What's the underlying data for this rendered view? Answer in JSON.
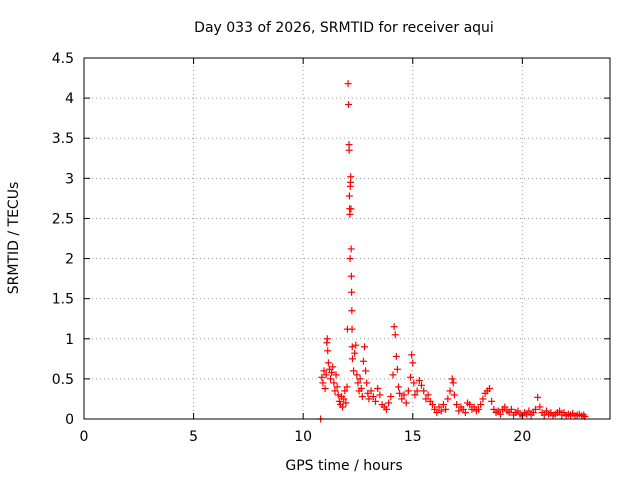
{
  "chart_data": {
    "type": "scatter",
    "title": "Day 033 of 2026, SRMTID for receiver aqui",
    "xlabel": "GPS time / hours",
    "ylabel": "SRMTID / TECUs",
    "xlim": [
      0,
      24
    ],
    "ylim": [
      0,
      4.5
    ],
    "xticks": [
      0,
      5,
      10,
      15,
      20
    ],
    "xtick_labels": [
      "0",
      "5",
      "10",
      "15",
      "20"
    ],
    "yticks": [
      0,
      0.5,
      1,
      1.5,
      2,
      2.5,
      3,
      3.5,
      4,
      4.5
    ],
    "ytick_labels": [
      "0",
      "0.5",
      "1",
      "1.5",
      "2",
      "2.5",
      "3",
      "3.5",
      "4",
      "4.5"
    ],
    "grid": true,
    "marker": "+",
    "color": "#ff0000",
    "series": [
      {
        "name": "SRMTID",
        "points": [
          [
            10.8,
            0.0
          ],
          [
            10.85,
            0.52
          ],
          [
            10.9,
            0.45
          ],
          [
            10.95,
            0.6
          ],
          [
            11.0,
            0.38
          ],
          [
            11.05,
            0.55
          ],
          [
            11.08,
            0.95
          ],
          [
            11.1,
            1.0
          ],
          [
            11.12,
            0.85
          ],
          [
            11.15,
            0.7
          ],
          [
            11.2,
            0.62
          ],
          [
            11.25,
            0.5
          ],
          [
            11.3,
            0.58
          ],
          [
            11.35,
            0.65
          ],
          [
            11.4,
            0.45
          ],
          [
            11.45,
            0.35
          ],
          [
            11.5,
            0.55
          ],
          [
            11.55,
            0.4
          ],
          [
            11.6,
            0.3
          ],
          [
            11.65,
            0.22
          ],
          [
            11.7,
            0.18
          ],
          [
            11.75,
            0.28
          ],
          [
            11.8,
            0.15
          ],
          [
            11.85,
            0.25
          ],
          [
            11.9,
            0.35
          ],
          [
            11.95,
            0.2
          ],
          [
            12.0,
            0.4
          ],
          [
            12.02,
            1.12
          ],
          [
            12.05,
            4.18
          ],
          [
            12.07,
            3.92
          ],
          [
            12.09,
            3.42
          ],
          [
            12.1,
            3.35
          ],
          [
            12.11,
            2.78
          ],
          [
            12.12,
            2.62
          ],
          [
            12.13,
            2.55
          ],
          [
            12.14,
            2.0
          ],
          [
            12.15,
            2.9
          ],
          [
            12.16,
            2.95
          ],
          [
            12.17,
            3.02
          ],
          [
            12.18,
            2.62
          ],
          [
            12.19,
            2.12
          ],
          [
            12.2,
            1.78
          ],
          [
            12.21,
            1.58
          ],
          [
            12.22,
            1.35
          ],
          [
            12.23,
            1.12
          ],
          [
            12.24,
            0.9
          ],
          [
            12.25,
            0.75
          ],
          [
            12.3,
            0.6
          ],
          [
            12.35,
            0.82
          ],
          [
            12.4,
            0.92
          ],
          [
            12.45,
            0.55
          ],
          [
            12.5,
            0.45
          ],
          [
            12.55,
            0.35
          ],
          [
            12.6,
            0.5
          ],
          [
            12.65,
            0.38
          ],
          [
            12.7,
            0.28
          ],
          [
            12.75,
            0.72
          ],
          [
            12.8,
            0.9
          ],
          [
            12.85,
            0.6
          ],
          [
            12.9,
            0.45
          ],
          [
            12.95,
            0.32
          ],
          [
            13.0,
            0.25
          ],
          [
            13.1,
            0.35
          ],
          [
            13.2,
            0.28
          ],
          [
            13.3,
            0.22
          ],
          [
            13.4,
            0.38
          ],
          [
            13.5,
            0.3
          ],
          [
            13.6,
            0.18
          ],
          [
            13.7,
            0.15
          ],
          [
            13.8,
            0.12
          ],
          [
            13.9,
            0.2
          ],
          [
            14.0,
            0.28
          ],
          [
            14.1,
            0.55
          ],
          [
            14.15,
            1.15
          ],
          [
            14.2,
            1.05
          ],
          [
            14.25,
            0.78
          ],
          [
            14.3,
            0.62
          ],
          [
            14.35,
            0.4
          ],
          [
            14.4,
            0.32
          ],
          [
            14.5,
            0.25
          ],
          [
            14.6,
            0.3
          ],
          [
            14.7,
            0.2
          ],
          [
            14.8,
            0.35
          ],
          [
            14.9,
            0.52
          ],
          [
            14.95,
            0.8
          ],
          [
            15.0,
            0.7
          ],
          [
            15.05,
            0.45
          ],
          [
            15.1,
            0.3
          ],
          [
            15.2,
            0.35
          ],
          [
            15.3,
            0.48
          ],
          [
            15.4,
            0.42
          ],
          [
            15.5,
            0.35
          ],
          [
            15.6,
            0.25
          ],
          [
            15.7,
            0.3
          ],
          [
            15.8,
            0.22
          ],
          [
            15.9,
            0.18
          ],
          [
            16.0,
            0.12
          ],
          [
            16.1,
            0.08
          ],
          [
            16.2,
            0.15
          ],
          [
            16.3,
            0.1
          ],
          [
            16.4,
            0.18
          ],
          [
            16.5,
            0.12
          ],
          [
            16.6,
            0.25
          ],
          [
            16.7,
            0.35
          ],
          [
            16.8,
            0.5
          ],
          [
            16.85,
            0.45
          ],
          [
            16.9,
            0.3
          ],
          [
            17.0,
            0.18
          ],
          [
            17.1,
            0.1
          ],
          [
            17.2,
            0.15
          ],
          [
            17.3,
            0.12
          ],
          [
            17.4,
            0.08
          ],
          [
            17.5,
            0.2
          ],
          [
            17.6,
            0.18
          ],
          [
            17.7,
            0.12
          ],
          [
            17.8,
            0.15
          ],
          [
            17.9,
            0.1
          ],
          [
            18.0,
            0.12
          ],
          [
            18.1,
            0.18
          ],
          [
            18.2,
            0.25
          ],
          [
            18.3,
            0.32
          ],
          [
            18.4,
            0.35
          ],
          [
            18.5,
            0.38
          ],
          [
            18.6,
            0.22
          ],
          [
            18.7,
            0.12
          ],
          [
            18.8,
            0.08
          ],
          [
            18.9,
            0.1
          ],
          [
            19.0,
            0.06
          ],
          [
            19.1,
            0.12
          ],
          [
            19.2,
            0.15
          ],
          [
            19.3,
            0.1
          ],
          [
            19.4,
            0.08
          ],
          [
            19.5,
            0.12
          ],
          [
            19.6,
            0.05
          ],
          [
            19.7,
            0.08
          ],
          [
            19.8,
            0.1
          ],
          [
            19.9,
            0.06
          ],
          [
            20.0,
            0.04
          ],
          [
            20.1,
            0.08
          ],
          [
            20.2,
            0.06
          ],
          [
            20.3,
            0.1
          ],
          [
            20.4,
            0.05
          ],
          [
            20.5,
            0.08
          ],
          [
            20.6,
            0.12
          ],
          [
            20.7,
            0.27
          ],
          [
            20.8,
            0.15
          ],
          [
            20.9,
            0.08
          ],
          [
            21.0,
            0.05
          ],
          [
            21.1,
            0.1
          ],
          [
            21.2,
            0.06
          ],
          [
            21.3,
            0.08
          ],
          [
            21.4,
            0.04
          ],
          [
            21.5,
            0.06
          ],
          [
            21.6,
            0.08
          ],
          [
            21.7,
            0.1
          ],
          [
            21.8,
            0.05
          ],
          [
            21.9,
            0.08
          ],
          [
            22.0,
            0.04
          ],
          [
            22.1,
            0.06
          ],
          [
            22.2,
            0.05
          ],
          [
            22.3,
            0.07
          ],
          [
            22.4,
            0.04
          ],
          [
            22.5,
            0.05
          ],
          [
            22.6,
            0.06
          ],
          [
            22.7,
            0.04
          ],
          [
            22.8,
            0.05
          ],
          [
            22.85,
            0.03
          ]
        ]
      }
    ]
  }
}
